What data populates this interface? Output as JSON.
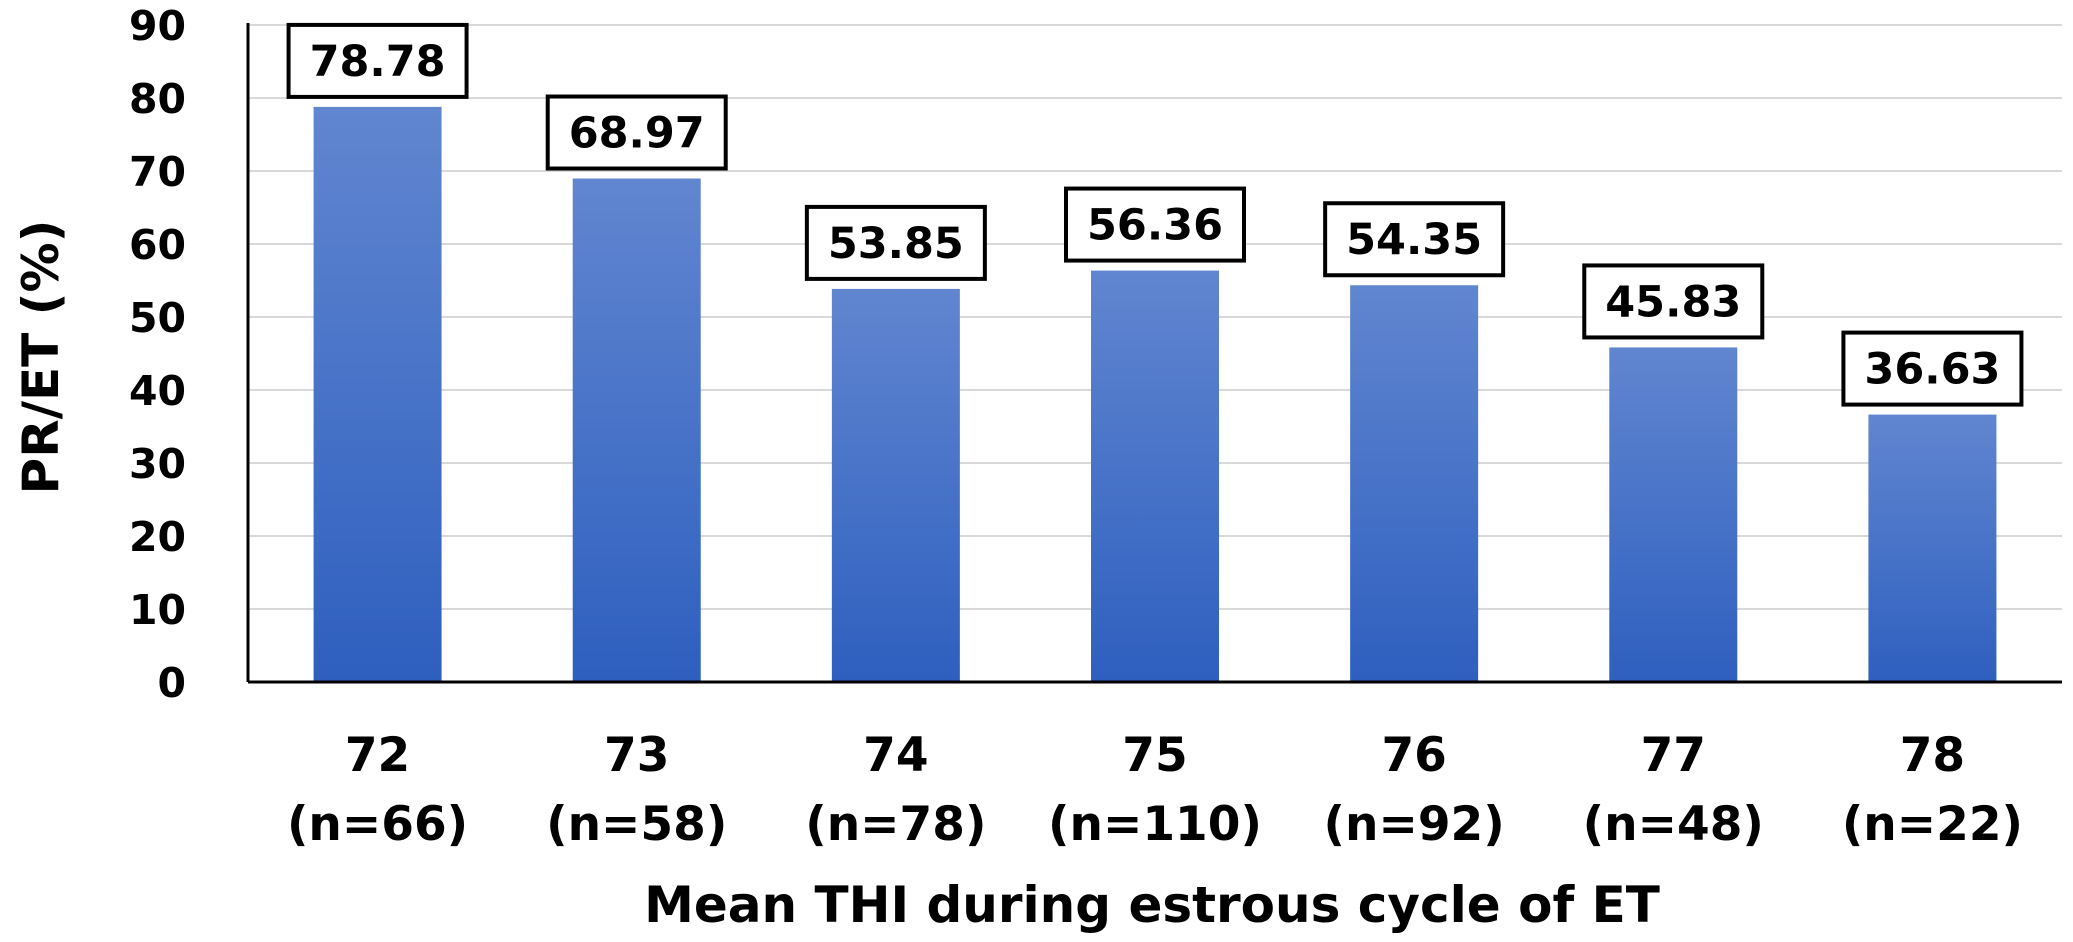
{
  "chart_data": {
    "type": "bar",
    "categories": [
      "72",
      "73",
      "74",
      "75",
      "76",
      "77",
      "78"
    ],
    "category_sublabels": [
      "(n=66)",
      "(n=58)",
      "(n=78)",
      "(n=110)",
      "(n=92)",
      "(n=48)",
      "(n=22)"
    ],
    "values": [
      78.78,
      68.97,
      53.85,
      56.36,
      54.35,
      45.83,
      36.63
    ],
    "data_labels": [
      "78.78",
      "68.97",
      "53.85",
      "56.36",
      "54.35",
      "45.83",
      "36.63"
    ],
    "title": "",
    "xlabel": "Mean THI during estrous cycle of ET",
    "ylabel": "PR/ET (%)",
    "ylim": [
      0,
      90
    ],
    "yticks": [
      0,
      10,
      20,
      30,
      40,
      50,
      60,
      70,
      80,
      90
    ],
    "grid": true,
    "legend": "none",
    "colors": {
      "bar_top": "#6186D0",
      "bar_bottom": "#2E5FBF",
      "grid": "#D9D9D9",
      "axis": "#000000",
      "label_box_border": "#000000"
    }
  }
}
